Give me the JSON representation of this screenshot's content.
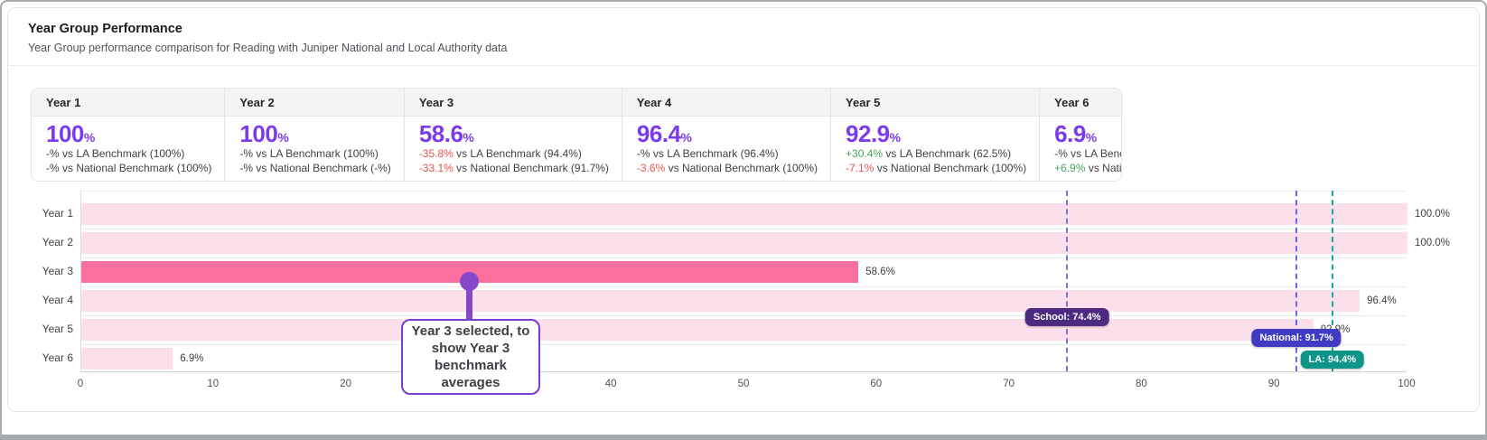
{
  "header": {
    "title": "Year Group Performance",
    "subtitle": "Year Group performance comparison for Reading with Juniper National and Local Authority data"
  },
  "cards": [
    {
      "label": "Year 1",
      "value": "100",
      "unit": "%",
      "rows": [
        {
          "delta": "-%",
          "delta_color": "neutral",
          "text": "vs LA Benchmark (100%)"
        },
        {
          "delta": "-%",
          "delta_color": "neutral",
          "text": "vs National Benchmark (100%)"
        }
      ]
    },
    {
      "label": "Year 2",
      "value": "100",
      "unit": "%",
      "rows": [
        {
          "delta": "-%",
          "delta_color": "neutral",
          "text": "vs LA Benchmark (100%)"
        },
        {
          "delta": "-%",
          "delta_color": "neutral",
          "text": "vs National Benchmark (-%)"
        }
      ]
    },
    {
      "label": "Year 3",
      "value": "58.6",
      "unit": "%",
      "rows": [
        {
          "delta": "-35.8%",
          "delta_color": "negative",
          "text": "vs LA Benchmark (94.4%)"
        },
        {
          "delta": "-33.1%",
          "delta_color": "negative",
          "text": "vs National Benchmark (91.7%)"
        }
      ]
    },
    {
      "label": "Year 4",
      "value": "96.4",
      "unit": "%",
      "rows": [
        {
          "delta": "-%",
          "delta_color": "neutral",
          "text": "vs LA Benchmark (96.4%)"
        },
        {
          "delta": "-3.6%",
          "delta_color": "negative",
          "text": "vs National Benchmark (100%)"
        }
      ]
    },
    {
      "label": "Year 5",
      "value": "92.9",
      "unit": "%",
      "rows": [
        {
          "delta": "+30.4%",
          "delta_color": "positive",
          "text": "vs LA Benchmark (62.5%)"
        },
        {
          "delta": "-7.1%",
          "delta_color": "negative",
          "text": "vs National Benchmark (100%)"
        }
      ]
    },
    {
      "label": "Year 6",
      "value": "6.9",
      "unit": "%",
      "rows": [
        {
          "delta": "-%",
          "delta_color": "neutral",
          "text": "vs LA Benchmark (-%)"
        },
        {
          "delta": "+6.9%",
          "delta_color": "positive",
          "text": "vs National Benchmark (-%)"
        }
      ]
    }
  ],
  "chart_data": {
    "type": "bar",
    "orientation": "horizontal",
    "title": "Year Group Performance",
    "categories": [
      "Year 1",
      "Year 2",
      "Year 3",
      "Year 4",
      "Year 5",
      "Year 6"
    ],
    "values": [
      100.0,
      100.0,
      58.6,
      96.4,
      92.9,
      6.9
    ],
    "value_labels": [
      "100.0%",
      "100.0%",
      "58.6%",
      "96.4%",
      "92.9%",
      "6.9%"
    ],
    "selected_category": "Year 3",
    "xlim": [
      0,
      100
    ],
    "x_ticks": [
      0,
      10,
      20,
      30,
      40,
      50,
      60,
      70,
      80,
      90,
      100
    ],
    "grid": "row-separators",
    "benchmarks": [
      {
        "name": "school-benchmark",
        "label": "School: 74.4%",
        "value": 74.4,
        "line_color": "#7b74e0",
        "badge_color": "#4b2a7f"
      },
      {
        "name": "national-benchmark",
        "label": "National: 91.7%",
        "value": 91.7,
        "line_color": "#6468ee",
        "badge_color": "#3f3cc3"
      },
      {
        "name": "la-benchmark",
        "label": "LA: 94.4%",
        "value": 94.4,
        "line_color": "#17a89c",
        "badge_color": "#0f9488"
      }
    ],
    "bar_color": "#fbdfeb",
    "selected_bar_color": "#fb6f9e"
  },
  "callout": {
    "text": "Year 3 selected, to show Year 3 benchmark averages"
  },
  "colors": {
    "accent_purple": "#7c3aed",
    "positive": "#4aa15c",
    "negative": "#e2574e",
    "neutral": "#3f3f46",
    "callout_border": "#7d3bd3",
    "pin": "#8747cb"
  }
}
